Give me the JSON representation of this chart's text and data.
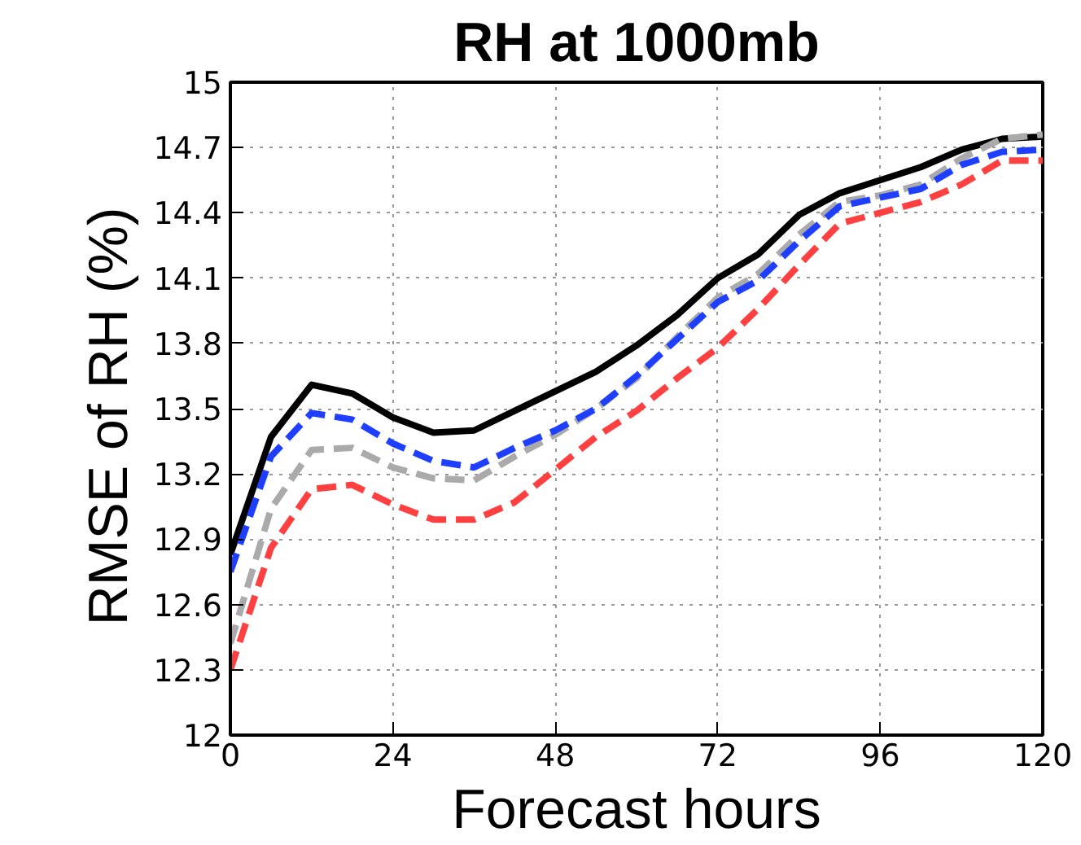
{
  "chart_data": {
    "type": "line",
    "title": "RH at 1000mb",
    "xlabel": "Forecast hours",
    "ylabel": "RMSE  of RH (%)",
    "x": [
      0,
      6,
      12,
      18,
      24,
      30,
      36,
      42,
      48,
      54,
      60,
      66,
      72,
      78,
      84,
      90,
      96,
      102,
      108,
      114,
      120
    ],
    "xlim": [
      0,
      120
    ],
    "xticks": [
      0,
      24,
      48,
      72,
      96,
      120
    ],
    "ylim": [
      12,
      15
    ],
    "yticks": [
      12,
      12.3,
      12.6,
      12.9,
      13.2,
      13.5,
      13.8,
      14.1,
      14.4,
      14.7,
      15
    ],
    "grid": true,
    "marker": "none",
    "series": [
      {
        "color": "#000000",
        "line_style": "solid",
        "values": [
          12.83,
          13.37,
          13.61,
          13.57,
          13.46,
          13.39,
          13.4,
          13.49,
          13.58,
          13.67,
          13.79,
          13.93,
          14.1,
          14.21,
          14.39,
          14.49,
          14.55,
          14.61,
          14.69,
          14.74,
          14.75
        ]
      },
      {
        "color": "#aaaaaa",
        "line_style": "dashed",
        "values": [
          12.42,
          13.04,
          13.31,
          13.32,
          13.23,
          13.18,
          13.17,
          13.28,
          13.38,
          13.5,
          13.64,
          13.83,
          14.01,
          14.12,
          14.3,
          14.45,
          14.48,
          14.53,
          14.65,
          14.74,
          14.76
        ]
      },
      {
        "color": "#1f3fff",
        "line_style": "dashed",
        "values": [
          12.75,
          13.28,
          13.48,
          13.45,
          13.34,
          13.26,
          13.23,
          13.32,
          13.4,
          13.5,
          13.65,
          13.82,
          13.99,
          14.09,
          14.27,
          14.43,
          14.47,
          14.51,
          14.62,
          14.68,
          14.69
        ]
      },
      {
        "color": "#ff4040",
        "line_style": "dashed",
        "values": [
          12.3,
          12.86,
          13.13,
          13.15,
          13.06,
          12.99,
          12.99,
          13.07,
          13.22,
          13.37,
          13.49,
          13.64,
          13.78,
          13.96,
          14.16,
          14.35,
          14.4,
          14.45,
          14.53,
          14.64,
          14.64
        ]
      }
    ]
  }
}
